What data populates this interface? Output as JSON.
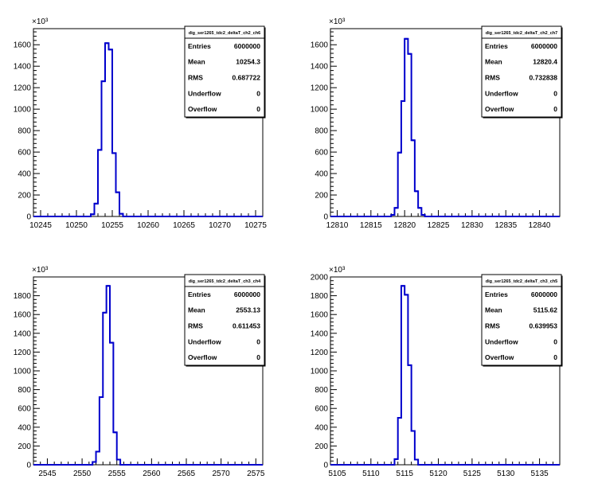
{
  "chart_data": [
    {
      "type": "bar",
      "panel": "top-left",
      "stats_title": "dig_ser1265_tdc2_deltaT_ch2_ch6",
      "stats": [
        {
          "label": "Entries",
          "value": "6000000"
        },
        {
          "label": "Mean",
          "value": "10254.3"
        },
        {
          "label": "RMS",
          "value": "0.687722"
        },
        {
          "label": "Underflow",
          "value": "0"
        },
        {
          "label": "Overflow",
          "value": "0"
        }
      ],
      "y_multiplier": "×10³",
      "xlim": [
        10244,
        10276
      ],
      "ylim": [
        0,
        1750
      ],
      "x_ticks": [
        10245,
        10250,
        10255,
        10260,
        10265,
        10270,
        10275
      ],
      "y_ticks": [
        0,
        200,
        400,
        600,
        800,
        1000,
        1200,
        1400,
        1600
      ],
      "bin_width": 0.5,
      "bins": [
        {
          "x": 10252.0,
          "y": 20
        },
        {
          "x": 10252.5,
          "y": 120
        },
        {
          "x": 10253.0,
          "y": 620
        },
        {
          "x": 10253.5,
          "y": 1260
        },
        {
          "x": 10254.0,
          "y": 1615
        },
        {
          "x": 10254.5,
          "y": 1555
        },
        {
          "x": 10255.0,
          "y": 590
        },
        {
          "x": 10255.5,
          "y": 225
        },
        {
          "x": 10256.0,
          "y": 25
        }
      ]
    },
    {
      "type": "bar",
      "panel": "top-right",
      "stats_title": "dig_ser1265_tdc2_deltaT_ch2_ch7",
      "stats": [
        {
          "label": "Entries",
          "value": "6000000"
        },
        {
          "label": "Mean",
          "value": "12820.4"
        },
        {
          "label": "RMS",
          "value": "0.732838"
        },
        {
          "label": "Underflow",
          "value": "0"
        },
        {
          "label": "Overflow",
          "value": "0"
        }
      ],
      "y_multiplier": "×10³",
      "xlim": [
        12809,
        12843
      ],
      "ylim": [
        0,
        1750
      ],
      "x_ticks": [
        12810,
        12815,
        12820,
        12825,
        12830,
        12835,
        12840
      ],
      "y_ticks": [
        0,
        200,
        400,
        600,
        800,
        1000,
        1200,
        1400,
        1600
      ],
      "bin_width": 0.5,
      "bins": [
        {
          "x": 12818.0,
          "y": 15
        },
        {
          "x": 12818.5,
          "y": 80
        },
        {
          "x": 12819.0,
          "y": 595
        },
        {
          "x": 12819.5,
          "y": 1075
        },
        {
          "x": 12820.0,
          "y": 1655
        },
        {
          "x": 12820.5,
          "y": 1515
        },
        {
          "x": 12821.0,
          "y": 710
        },
        {
          "x": 12821.5,
          "y": 235
        },
        {
          "x": 12822.0,
          "y": 80
        },
        {
          "x": 12822.5,
          "y": 15
        }
      ]
    },
    {
      "type": "bar",
      "panel": "bottom-left",
      "stats_title": "dig_ser1265_tdc2_deltaT_ch3_ch4",
      "stats": [
        {
          "label": "Entries",
          "value": "6000000"
        },
        {
          "label": "Mean",
          "value": "2553.13"
        },
        {
          "label": "RMS",
          "value": "0.611453"
        },
        {
          "label": "Underflow",
          "value": "0"
        },
        {
          "label": "Overflow",
          "value": "0"
        }
      ],
      "y_multiplier": "×10³",
      "xlim": [
        2543,
        2576
      ],
      "ylim": [
        0,
        2000
      ],
      "x_ticks": [
        2545,
        2550,
        2555,
        2560,
        2565,
        2570,
        2575
      ],
      "y_ticks": [
        0,
        200,
        400,
        600,
        800,
        1000,
        1200,
        1400,
        1600,
        1800
      ],
      "bin_width": 0.5,
      "bins": [
        {
          "x": 2551.5,
          "y": 30
        },
        {
          "x": 2552.0,
          "y": 140
        },
        {
          "x": 2552.5,
          "y": 720
        },
        {
          "x": 2553.0,
          "y": 1620
        },
        {
          "x": 2553.5,
          "y": 1905
        },
        {
          "x": 2554.0,
          "y": 1300
        },
        {
          "x": 2554.5,
          "y": 345
        },
        {
          "x": 2555.0,
          "y": 55
        }
      ]
    },
    {
      "type": "bar",
      "panel": "bottom-right",
      "stats_title": "dig_ser1265_tdc2_deltaT_ch3_ch5",
      "stats": [
        {
          "label": "Entries",
          "value": "6000000"
        },
        {
          "label": "Mean",
          "value": "5115.62"
        },
        {
          "label": "RMS",
          "value": "0.639953"
        },
        {
          "label": "Underflow",
          "value": "0"
        },
        {
          "label": "Overflow",
          "value": "0"
        }
      ],
      "y_multiplier": "×10³",
      "xlim": [
        5104,
        5138
      ],
      "ylim": [
        0,
        2000
      ],
      "x_ticks": [
        5105,
        5110,
        5115,
        5120,
        5125,
        5130,
        5135
      ],
      "y_ticks": [
        0,
        200,
        400,
        600,
        800,
        1000,
        1200,
        1400,
        1600,
        1800,
        2000
      ],
      "bin_width": 0.5,
      "bins": [
        {
          "x": 5113.5,
          "y": 60
        },
        {
          "x": 5114.0,
          "y": 500
        },
        {
          "x": 5114.5,
          "y": 1905
        },
        {
          "x": 5115.0,
          "y": 1810
        },
        {
          "x": 5115.5,
          "y": 1060
        },
        {
          "x": 5116.0,
          "y": 360
        },
        {
          "x": 5116.5,
          "y": 55
        }
      ]
    }
  ]
}
